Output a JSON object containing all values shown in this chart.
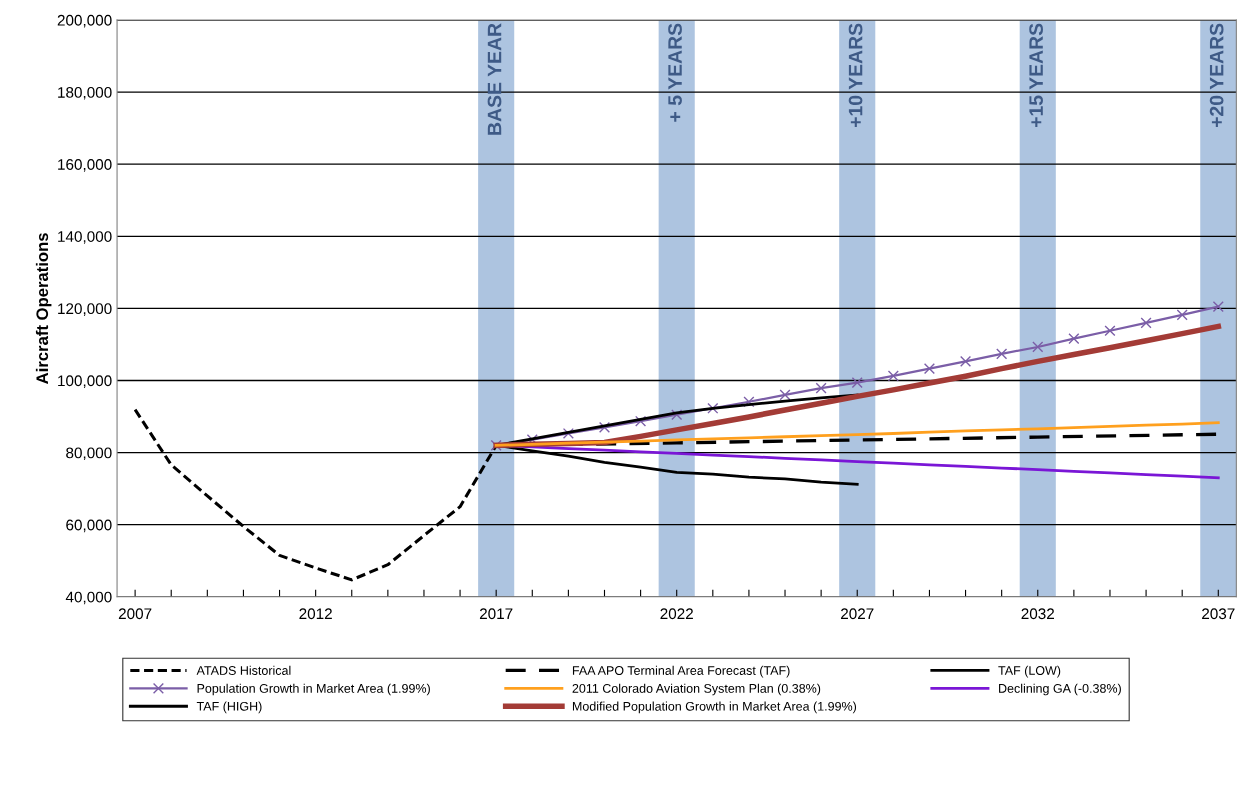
{
  "chart_data": {
    "type": "line",
    "ylabel": "Aircraft Operations",
    "xlim": [
      2006.5,
      2037.5
    ],
    "xticks": [
      2007,
      {
        "value": 2008,
        "label": null
      },
      {
        "value": 2009,
        "label": null
      },
      {
        "value": 2010,
        "label": null
      },
      {
        "value": 2011,
        "label": null
      },
      2012,
      {
        "value": 2013,
        "label": null
      },
      {
        "value": 2014,
        "label": null
      },
      {
        "value": 2015,
        "label": null
      },
      {
        "value": 2016,
        "label": null
      },
      2017,
      {
        "value": 2018,
        "label": null
      },
      {
        "value": 2019,
        "label": null
      },
      {
        "value": 2020,
        "label": null
      },
      {
        "value": 2021,
        "label": null
      },
      2022,
      {
        "value": 2023,
        "label": null
      },
      {
        "value": 2024,
        "label": null
      },
      {
        "value": 2025,
        "label": null
      },
      {
        "value": 2026,
        "label": null
      },
      2027,
      {
        "value": 2028,
        "label": null
      },
      {
        "value": 2029,
        "label": null
      },
      {
        "value": 2030,
        "label": null
      },
      {
        "value": 2031,
        "label": null
      },
      2032,
      {
        "value": 2033,
        "label": null
      },
      {
        "value": 2034,
        "label": null
      },
      {
        "value": 2035,
        "label": null
      },
      {
        "value": 2036,
        "label": null
      },
      2037
    ],
    "ylim": [
      40000,
      200000
    ],
    "yticks": [
      {
        "value": 40000,
        "label": "40,000"
      },
      {
        "value": 60000,
        "label": "60,000"
      },
      {
        "value": 80000,
        "label": "80,000"
      },
      {
        "value": 100000,
        "label": "100,000"
      },
      {
        "value": 120000,
        "label": "120,000"
      },
      {
        "value": 140000,
        "label": "140,000"
      },
      {
        "value": 160000,
        "label": "160,000"
      },
      {
        "value": 180000,
        "label": "180,000"
      },
      {
        "value": 200000,
        "label": "200,000"
      }
    ],
    "grid": "y",
    "legend": "bottom",
    "bands": [
      {
        "axis": "x",
        "from": 2016.5,
        "to": 2017.5,
        "label": "BASE YEAR",
        "color": "#adc4e0"
      },
      {
        "axis": "x",
        "from": 2021.5,
        "to": 2022.5,
        "label": "+ 5 YEARS",
        "color": "#adc4e0"
      },
      {
        "axis": "x",
        "from": 2026.5,
        "to": 2027.5,
        "label": "+10 YEARS",
        "color": "#adc4e0"
      },
      {
        "axis": "x",
        "from": 2031.5,
        "to": 2032.5,
        "label": "+15 YEARS",
        "color": "#adc4e0"
      },
      {
        "axis": "x",
        "from": 2036.5,
        "to": 2037.5,
        "label": "+20 YEARS",
        "color": "#adc4e0"
      }
    ],
    "series": [
      {
        "name": "ATADS Historical",
        "color": "#000000",
        "line_style": "dotted",
        "x": [
          2007,
          2008,
          2009,
          2010,
          2011,
          2012,
          2013,
          2014,
          2015,
          2016,
          2017
        ],
        "values": [
          91900,
          76600,
          68000,
          59500,
          51500,
          48000,
          44700,
          48900,
          57000,
          65000,
          82000
        ]
      },
      {
        "name": "FAA APO Terminal Area Forecast (TAF)",
        "color": "#000000",
        "line_style": "dashed",
        "x": [
          2017,
          2022,
          2027,
          2032,
          2037
        ],
        "values": [
          82000,
          82700,
          83500,
          84300,
          85100
        ]
      },
      {
        "name": "TAF (LOW)",
        "color": "#000000",
        "x": [
          2017,
          2018,
          2019,
          2020,
          2021,
          2022,
          2023,
          2024,
          2025,
          2026,
          2027
        ],
        "values": [
          82000,
          80500,
          79000,
          77300,
          76000,
          74500,
          74000,
          73200,
          72700,
          71800,
          71200
        ]
      },
      {
        "name": "Population Growth in Market Area (1.99%)",
        "color": "#7b5ea7",
        "marker": "cross",
        "x": [
          2017,
          2018,
          2019,
          2020,
          2021,
          2022,
          2023,
          2024,
          2025,
          2026,
          2027,
          2028,
          2029,
          2030,
          2031,
          2032,
          2033,
          2034,
          2035,
          2036,
          2037
        ],
        "values": [
          82000,
          83600,
          85300,
          87000,
          88700,
          90500,
          92300,
          94100,
          96000,
          97900,
          99400,
          101300,
          103300,
          105300,
          107400,
          109300,
          111600,
          113800,
          116000,
          118200,
          120500
        ]
      },
      {
        "name": "2011 Colorado Aviation System Plan (0.38%)",
        "color": "#ffa01e",
        "x": [
          2017,
          2018,
          2019,
          2020,
          2021,
          2022,
          2023,
          2024,
          2025,
          2026,
          2027,
          2028,
          2029,
          2030,
          2031,
          2032,
          2033,
          2034,
          2035,
          2036,
          2037
        ],
        "values": [
          82000,
          82300,
          82600,
          82900,
          83200,
          83500,
          83800,
          84100,
          84400,
          84700,
          85000,
          85300,
          85700,
          86000,
          86300,
          86600,
          86900,
          87300,
          87600,
          87900,
          88300
        ]
      },
      {
        "name": "Declining GA (-0.38%)",
        "color": "#7a16d6",
        "x": [
          2017,
          2018,
          2019,
          2020,
          2021,
          2022,
          2023,
          2024,
          2025,
          2026,
          2027,
          2028,
          2029,
          2030,
          2031,
          2032,
          2033,
          2034,
          2035,
          2036,
          2037
        ],
        "values": [
          82000,
          81600,
          81100,
          80700,
          80200,
          79800,
          79300,
          78900,
          78400,
          78000,
          77500,
          77100,
          76600,
          76200,
          75700,
          75300,
          74800,
          74400,
          73900,
          73500,
          73000
        ]
      },
      {
        "name": "TAF (HIGH)",
        "color": "#000000",
        "x": [
          2017,
          2018,
          2019,
          2020,
          2021,
          2022,
          2023,
          2024,
          2025,
          2026,
          2027
        ],
        "values": [
          82000,
          83800,
          85600,
          87400,
          89200,
          91000,
          92300,
          93300,
          94300,
          95200,
          96000
        ]
      },
      {
        "name": "Modified Population Growth in Market Area (1.99%)",
        "color": "#a33b36",
        "x": [
          2017,
          2018,
          2019,
          2020,
          2021,
          2022,
          2023,
          2024,
          2025,
          2026,
          2027,
          2028,
          2029,
          2030,
          2031,
          2032,
          2033,
          2034,
          2035,
          2036,
          2037
        ],
        "values": [
          82000,
          82300,
          82500,
          82800,
          84500,
          86300,
          88100,
          89900,
          91800,
          93700,
          95600,
          97400,
          99300,
          101200,
          103300,
          105300,
          107200,
          109100,
          111000,
          113000,
          115000
        ]
      }
    ]
  }
}
